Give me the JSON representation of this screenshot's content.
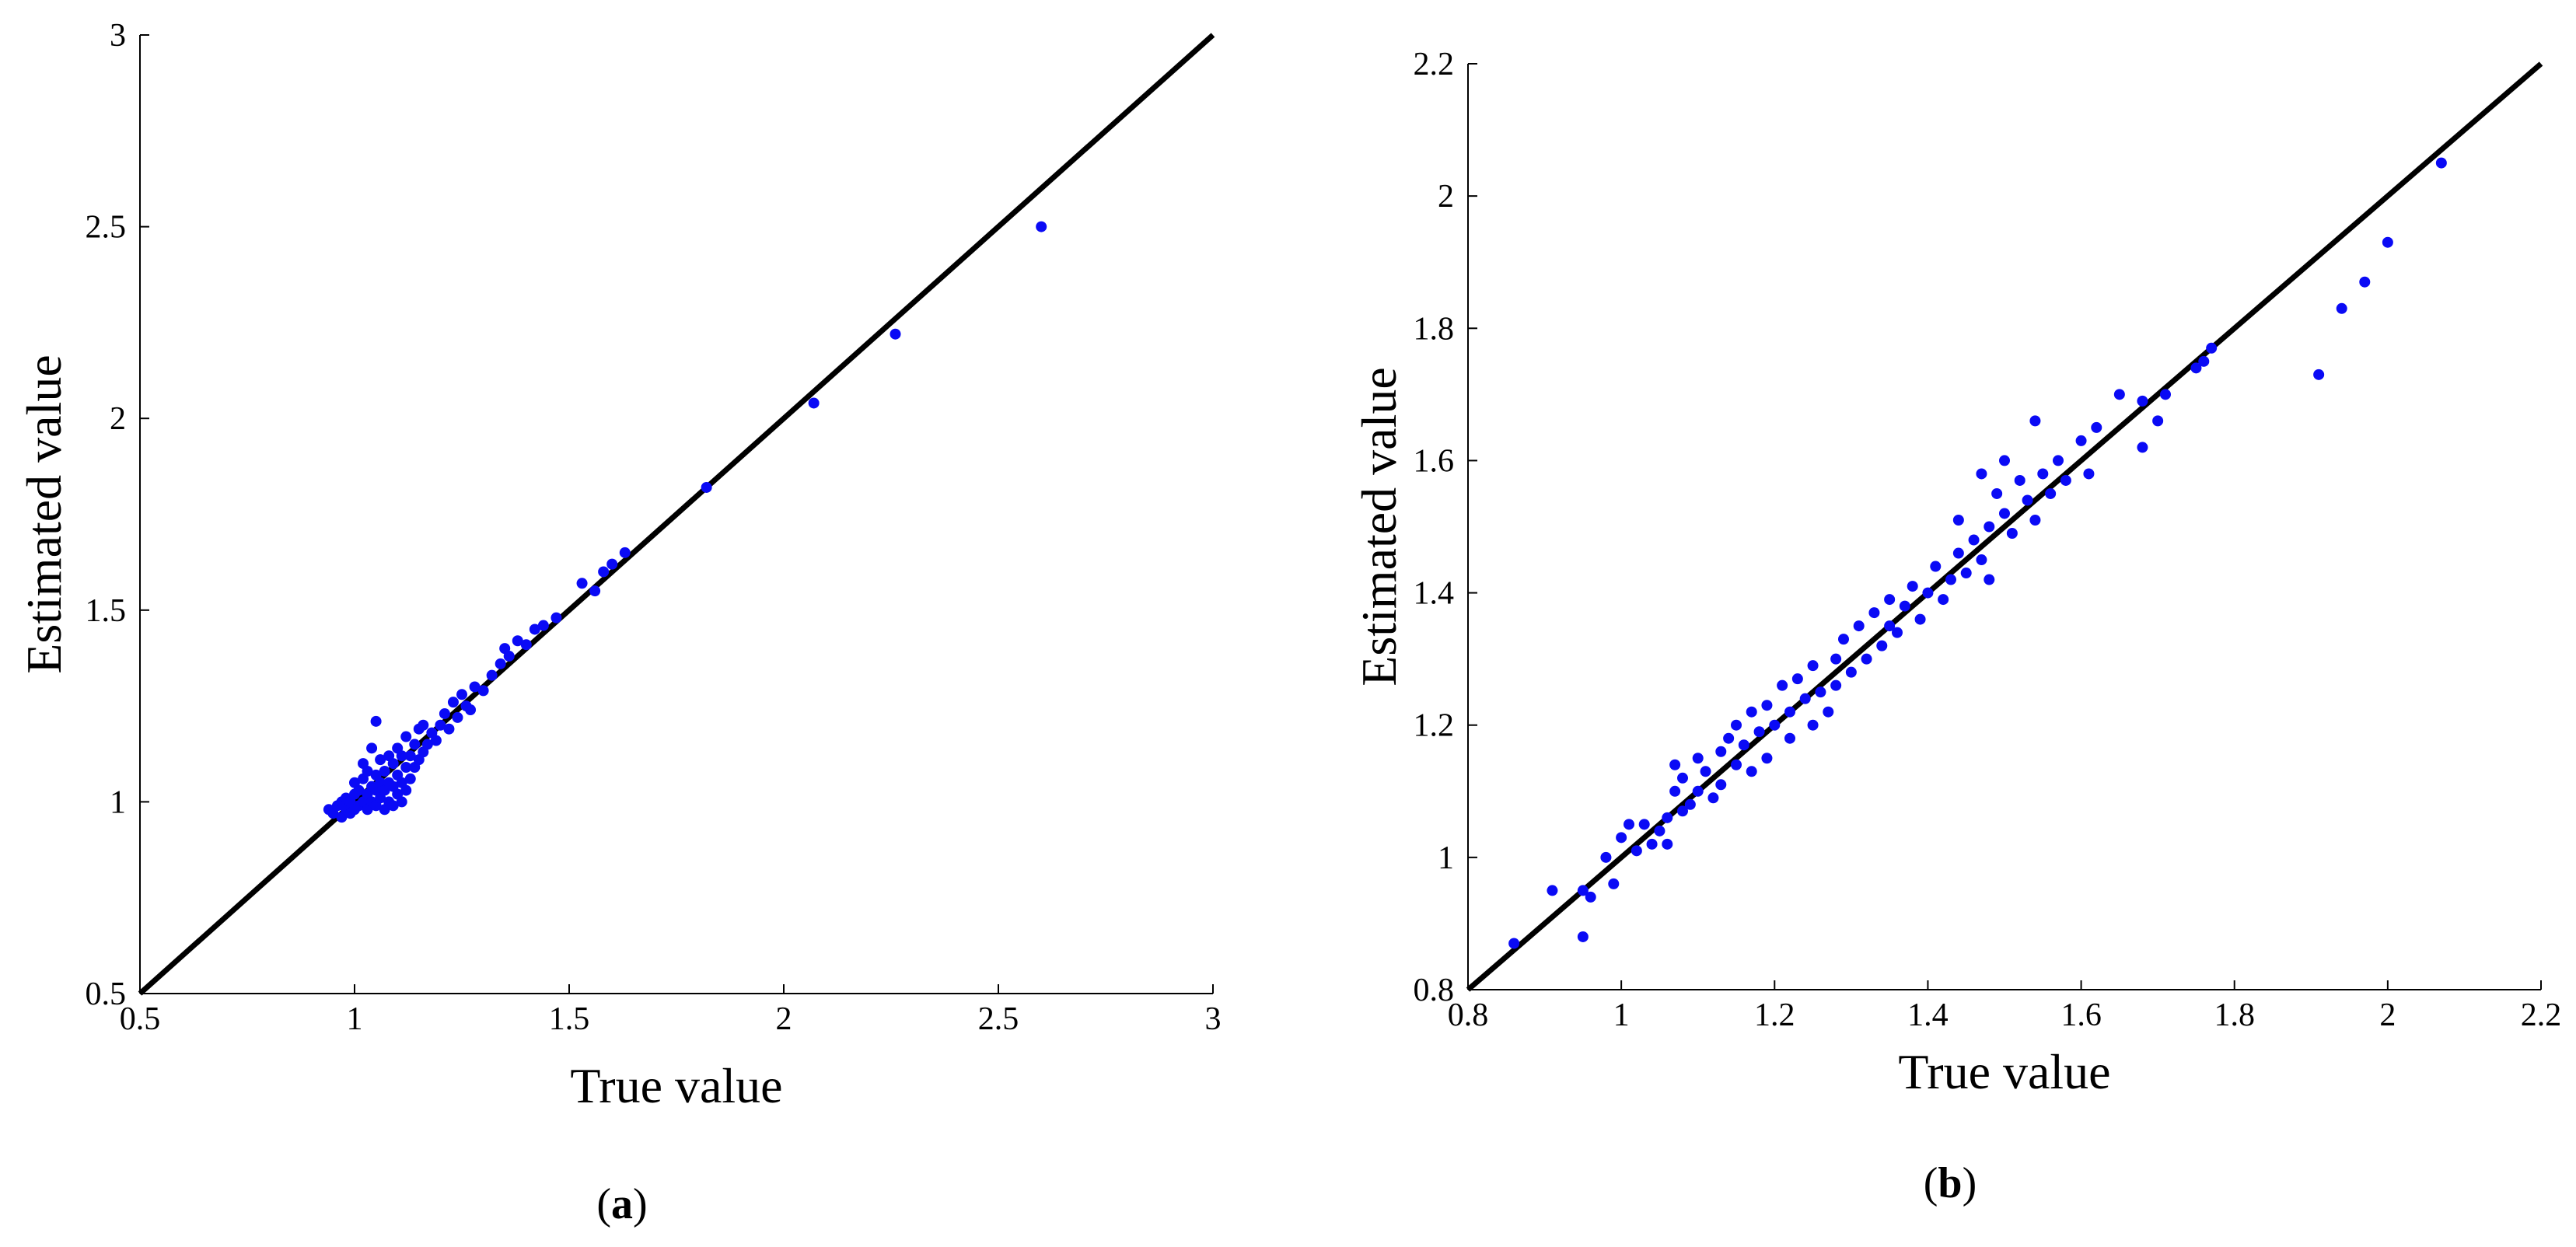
{
  "chart_data": [
    {
      "panel": "a",
      "type": "scatter",
      "xlabel": "True value",
      "ylabel": "Estimated value",
      "xlim": [
        0.5,
        3
      ],
      "ylim": [
        0.5,
        3
      ],
      "xticks": [
        "0.5",
        "1",
        "1.5",
        "2",
        "2.5",
        "3"
      ],
      "yticks": [
        "0.5",
        "1",
        "1.5",
        "2",
        "2.5",
        "3"
      ],
      "grid": false,
      "legend": "none",
      "reference_line": {
        "from": [
          0.5,
          0.5
        ],
        "to": [
          3,
          3
        ]
      },
      "series": [
        {
          "points": [
            [
              0.94,
              0.98
            ],
            [
              0.95,
              0.97
            ],
            [
              0.96,
              0.99
            ],
            [
              0.97,
              0.96
            ],
            [
              0.97,
              1.0
            ],
            [
              0.98,
              0.98
            ],
            [
              0.98,
              1.01
            ],
            [
              0.99,
              0.97
            ],
            [
              0.99,
              1.0
            ],
            [
              1.0,
              0.98
            ],
            [
              1.0,
              1.02
            ],
            [
              1.0,
              1.05
            ],
            [
              1.01,
              0.99
            ],
            [
              1.01,
              1.03
            ],
            [
              1.02,
              1.0
            ],
            [
              1.02,
              1.06
            ],
            [
              1.02,
              1.1
            ],
            [
              1.03,
              0.98
            ],
            [
              1.03,
              1.02
            ],
            [
              1.03,
              1.08
            ],
            [
              1.04,
              1.0
            ],
            [
              1.04,
              1.04
            ],
            [
              1.04,
              1.14
            ],
            [
              1.05,
              0.99
            ],
            [
              1.05,
              1.03
            ],
            [
              1.05,
              1.07
            ],
            [
              1.05,
              1.21
            ],
            [
              1.06,
              1.01
            ],
            [
              1.06,
              1.05
            ],
            [
              1.06,
              1.11
            ],
            [
              1.07,
              0.98
            ],
            [
              1.07,
              1.03
            ],
            [
              1.07,
              1.08
            ],
            [
              1.08,
              1.0
            ],
            [
              1.08,
              1.05
            ],
            [
              1.08,
              1.12
            ],
            [
              1.09,
              0.99
            ],
            [
              1.09,
              1.04
            ],
            [
              1.09,
              1.1
            ],
            [
              1.1,
              1.02
            ],
            [
              1.1,
              1.07
            ],
            [
              1.1,
              1.14
            ],
            [
              1.11,
              1.0
            ],
            [
              1.11,
              1.05
            ],
            [
              1.11,
              1.12
            ],
            [
              1.12,
              1.03
            ],
            [
              1.12,
              1.09
            ],
            [
              1.12,
              1.17
            ],
            [
              1.13,
              1.06
            ],
            [
              1.13,
              1.12
            ],
            [
              1.14,
              1.09
            ],
            [
              1.14,
              1.15
            ],
            [
              1.15,
              1.11
            ],
            [
              1.15,
              1.19
            ],
            [
              1.16,
              1.13
            ],
            [
              1.16,
              1.2
            ],
            [
              1.17,
              1.15
            ],
            [
              1.18,
              1.18
            ],
            [
              1.19,
              1.16
            ],
            [
              1.2,
              1.2
            ],
            [
              1.21,
              1.23
            ],
            [
              1.22,
              1.19
            ],
            [
              1.23,
              1.26
            ],
            [
              1.24,
              1.22
            ],
            [
              1.25,
              1.28
            ],
            [
              1.26,
              1.25
            ],
            [
              1.27,
              1.24
            ],
            [
              1.28,
              1.3
            ],
            [
              1.3,
              1.29
            ],
            [
              1.32,
              1.33
            ],
            [
              1.34,
              1.36
            ],
            [
              1.35,
              1.4
            ],
            [
              1.36,
              1.38
            ],
            [
              1.38,
              1.42
            ],
            [
              1.4,
              1.41
            ],
            [
              1.42,
              1.45
            ],
            [
              1.44,
              1.46
            ],
            [
              1.47,
              1.48
            ],
            [
              1.53,
              1.57
            ],
            [
              1.56,
              1.55
            ],
            [
              1.58,
              1.6
            ],
            [
              1.6,
              1.62
            ],
            [
              1.63,
              1.65
            ],
            [
              1.82,
              1.82
            ],
            [
              2.07,
              2.04
            ],
            [
              2.26,
              2.22
            ],
            [
              2.6,
              2.5
            ]
          ]
        }
      ]
    },
    {
      "panel": "b",
      "type": "scatter",
      "xlabel": "True value",
      "ylabel": "Estimated value",
      "xlim": [
        0.8,
        2.2
      ],
      "ylim": [
        0.8,
        2.2
      ],
      "xticks": [
        "0.8",
        "1",
        "1.2",
        "1.4",
        "1.6",
        "1.8",
        "2",
        "2.2"
      ],
      "yticks": [
        "0.8",
        "1",
        "1.2",
        "1.4",
        "1.6",
        "1.8",
        "2",
        "2.2"
      ],
      "grid": false,
      "legend": "none",
      "reference_line": {
        "from": [
          0.8,
          0.8
        ],
        "to": [
          2.2,
          2.2
        ]
      },
      "series": [
        {
          "points": [
            [
              0.86,
              0.87
            ],
            [
              0.91,
              0.95
            ],
            [
              0.95,
              0.95
            ],
            [
              0.95,
              0.88
            ],
            [
              0.96,
              0.94
            ],
            [
              0.98,
              1.0
            ],
            [
              0.99,
              0.96
            ],
            [
              1.0,
              1.03
            ],
            [
              1.01,
              1.05
            ],
            [
              1.02,
              1.01
            ],
            [
              1.03,
              1.05
            ],
            [
              1.04,
              1.02
            ],
            [
              1.05,
              1.04
            ],
            [
              1.06,
              1.06
            ],
            [
              1.06,
              1.02
            ],
            [
              1.07,
              1.1
            ],
            [
              1.07,
              1.14
            ],
            [
              1.08,
              1.07
            ],
            [
              1.08,
              1.12
            ],
            [
              1.09,
              1.08
            ],
            [
              1.1,
              1.1
            ],
            [
              1.1,
              1.15
            ],
            [
              1.11,
              1.13
            ],
            [
              1.12,
              1.09
            ],
            [
              1.13,
              1.16
            ],
            [
              1.13,
              1.11
            ],
            [
              1.14,
              1.18
            ],
            [
              1.15,
              1.14
            ],
            [
              1.15,
              1.2
            ],
            [
              1.16,
              1.17
            ],
            [
              1.17,
              1.13
            ],
            [
              1.17,
              1.22
            ],
            [
              1.18,
              1.19
            ],
            [
              1.19,
              1.15
            ],
            [
              1.19,
              1.23
            ],
            [
              1.2,
              1.2
            ],
            [
              1.21,
              1.26
            ],
            [
              1.22,
              1.18
            ],
            [
              1.22,
              1.22
            ],
            [
              1.23,
              1.27
            ],
            [
              1.24,
              1.24
            ],
            [
              1.25,
              1.2
            ],
            [
              1.25,
              1.29
            ],
            [
              1.26,
              1.25
            ],
            [
              1.27,
              1.22
            ],
            [
              1.28,
              1.3
            ],
            [
              1.28,
              1.26
            ],
            [
              1.29,
              1.33
            ],
            [
              1.3,
              1.28
            ],
            [
              1.31,
              1.35
            ],
            [
              1.32,
              1.3
            ],
            [
              1.33,
              1.37
            ],
            [
              1.34,
              1.32
            ],
            [
              1.35,
              1.39
            ],
            [
              1.35,
              1.35
            ],
            [
              1.36,
              1.34
            ],
            [
              1.37,
              1.38
            ],
            [
              1.38,
              1.41
            ],
            [
              1.39,
              1.36
            ],
            [
              1.4,
              1.4
            ],
            [
              1.41,
              1.44
            ],
            [
              1.42,
              1.39
            ],
            [
              1.43,
              1.42
            ],
            [
              1.44,
              1.46
            ],
            [
              1.44,
              1.51
            ],
            [
              1.45,
              1.43
            ],
            [
              1.46,
              1.48
            ],
            [
              1.47,
              1.45
            ],
            [
              1.47,
              1.58
            ],
            [
              1.48,
              1.5
            ],
            [
              1.48,
              1.42
            ],
            [
              1.49,
              1.55
            ],
            [
              1.5,
              1.52
            ],
            [
              1.5,
              1.6
            ],
            [
              1.51,
              1.49
            ],
            [
              1.52,
              1.57
            ],
            [
              1.53,
              1.54
            ],
            [
              1.54,
              1.51
            ],
            [
              1.54,
              1.66
            ],
            [
              1.55,
              1.58
            ],
            [
              1.56,
              1.55
            ],
            [
              1.57,
              1.6
            ],
            [
              1.58,
              1.57
            ],
            [
              1.6,
              1.63
            ],
            [
              1.61,
              1.58
            ],
            [
              1.62,
              1.65
            ],
            [
              1.65,
              1.7
            ],
            [
              1.68,
              1.69
            ],
            [
              1.68,
              1.62
            ],
            [
              1.7,
              1.66
            ],
            [
              1.71,
              1.7
            ],
            [
              1.75,
              1.74
            ],
            [
              1.76,
              1.75
            ],
            [
              1.77,
              1.77
            ],
            [
              1.91,
              1.73
            ],
            [
              1.94,
              1.83
            ],
            [
              1.97,
              1.87
            ],
            [
              2.0,
              1.93
            ],
            [
              2.07,
              2.05
            ]
          ]
        }
      ]
    }
  ],
  "panel_labels": [
    {
      "open": "(",
      "letter": "a",
      "close": ")"
    },
    {
      "open": "(",
      "letter": "b",
      "close": ")"
    }
  ],
  "colors": {
    "points": "#0a0af5",
    "reference_line": "#000000",
    "axes": "#000000"
  }
}
